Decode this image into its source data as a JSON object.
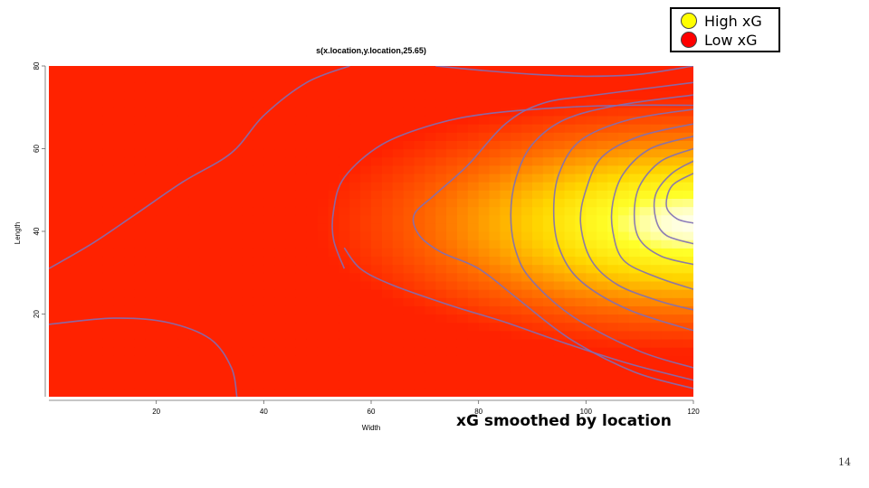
{
  "legend": {
    "items": [
      {
        "label": "High xG",
        "color": "#FFFF00"
      },
      {
        "label": "Low xG",
        "color": "#FF0000"
      }
    ]
  },
  "caption": "xG smoothed by location",
  "page_number": "14",
  "chart_data": {
    "type": "heatmap",
    "title": "s(x.location,y.location,25.65)",
    "xlabel": "Width",
    "ylabel": "Length",
    "xlim": [
      0,
      120
    ],
    "ylim": [
      0,
      80
    ],
    "x_ticks": [
      20,
      40,
      60,
      80,
      100,
      120
    ],
    "y_ticks": [
      20,
      40,
      60,
      80
    ],
    "grid": false,
    "colors": {
      "low": "#FF2200",
      "mid": "#FF9900",
      "high": "#FFFF00",
      "peak": "#FFFFF0",
      "contour": "#7F6FB5"
    },
    "peak": {
      "x": 120,
      "y": 42
    },
    "contours": [
      {
        "points": [
          [
            0,
            31
          ],
          [
            8,
            37
          ],
          [
            16,
            44
          ],
          [
            25,
            52
          ],
          [
            34,
            59
          ],
          [
            40,
            68
          ],
          [
            48,
            76
          ],
          [
            56,
            80
          ]
        ]
      },
      {
        "points": [
          [
            0,
            17.5
          ],
          [
            12,
            19
          ],
          [
            22,
            18
          ],
          [
            30,
            14
          ],
          [
            34,
            7
          ],
          [
            35,
            0
          ]
        ]
      },
      {
        "points": [
          [
            72,
            80
          ],
          [
            80,
            79
          ],
          [
            90,
            78
          ],
          [
            100,
            77.5
          ],
          [
            110,
            78
          ],
          [
            120,
            80
          ]
        ]
      },
      {
        "points": [
          [
            55,
            31
          ],
          [
            53,
            38
          ],
          [
            53,
            45
          ],
          [
            55,
            53
          ],
          [
            62,
            61
          ],
          [
            72,
            66
          ],
          [
            82,
            68.5
          ],
          [
            96,
            70
          ],
          [
            108,
            70.5
          ],
          [
            120,
            70.5
          ]
        ]
      },
      {
        "points": [
          [
            120,
            4
          ],
          [
            108,
            8
          ],
          [
            96,
            13
          ],
          [
            85,
            18
          ],
          [
            75,
            22
          ],
          [
            64,
            27
          ],
          [
            58,
            31
          ],
          [
            55,
            36
          ]
        ]
      },
      {
        "points": [
          [
            120,
            76
          ],
          [
            102,
            73
          ],
          [
            92,
            71
          ],
          [
            85,
            66
          ],
          [
            78,
            56
          ],
          [
            72,
            49
          ],
          [
            68,
            44
          ],
          [
            69,
            39
          ],
          [
            73,
            35
          ],
          [
            80,
            31
          ],
          [
            87,
            24
          ],
          [
            97,
            14
          ],
          [
            109,
            6
          ],
          [
            120,
            2
          ]
        ]
      },
      {
        "points": [
          [
            120,
            73
          ],
          [
            106,
            70.5
          ],
          [
            96,
            67
          ],
          [
            90,
            61
          ],
          [
            87,
            53
          ],
          [
            86,
            44
          ],
          [
            87,
            35
          ],
          [
            90,
            28
          ],
          [
            98,
            19
          ],
          [
            110,
            11
          ],
          [
            120,
            7
          ]
        ]
      },
      {
        "points": [
          [
            120,
            69.5
          ],
          [
            108,
            67
          ],
          [
            99,
            62
          ],
          [
            95,
            54
          ],
          [
            94,
            45
          ],
          [
            95,
            36
          ],
          [
            99,
            28
          ],
          [
            108,
            21
          ],
          [
            120,
            16
          ]
        ]
      },
      {
        "points": [
          [
            120,
            66
          ],
          [
            110,
            63
          ],
          [
            103,
            58
          ],
          [
            100,
            50
          ],
          [
            99,
            42
          ],
          [
            101,
            33
          ],
          [
            106,
            27
          ],
          [
            114,
            23
          ],
          [
            120,
            21
          ]
        ]
      },
      {
        "points": [
          [
            120,
            63
          ],
          [
            112,
            60
          ],
          [
            107,
            54
          ],
          [
            105,
            47
          ],
          [
            105,
            40
          ],
          [
            107,
            33
          ],
          [
            113,
            29
          ],
          [
            120,
            26
          ]
        ]
      },
      {
        "points": [
          [
            120,
            60
          ],
          [
            114,
            57
          ],
          [
            110,
            51
          ],
          [
            109,
            44
          ],
          [
            110,
            38
          ],
          [
            114,
            34
          ],
          [
            120,
            32
          ]
        ]
      },
      {
        "points": [
          [
            120,
            57
          ],
          [
            116,
            54
          ],
          [
            113,
            49
          ],
          [
            113,
            43
          ],
          [
            115,
            39
          ],
          [
            120,
            37
          ]
        ]
      },
      {
        "points": [
          [
            120,
            54
          ],
          [
            116,
            51
          ],
          [
            115,
            46
          ],
          [
            117,
            43
          ],
          [
            120,
            42
          ]
        ]
      }
    ]
  }
}
